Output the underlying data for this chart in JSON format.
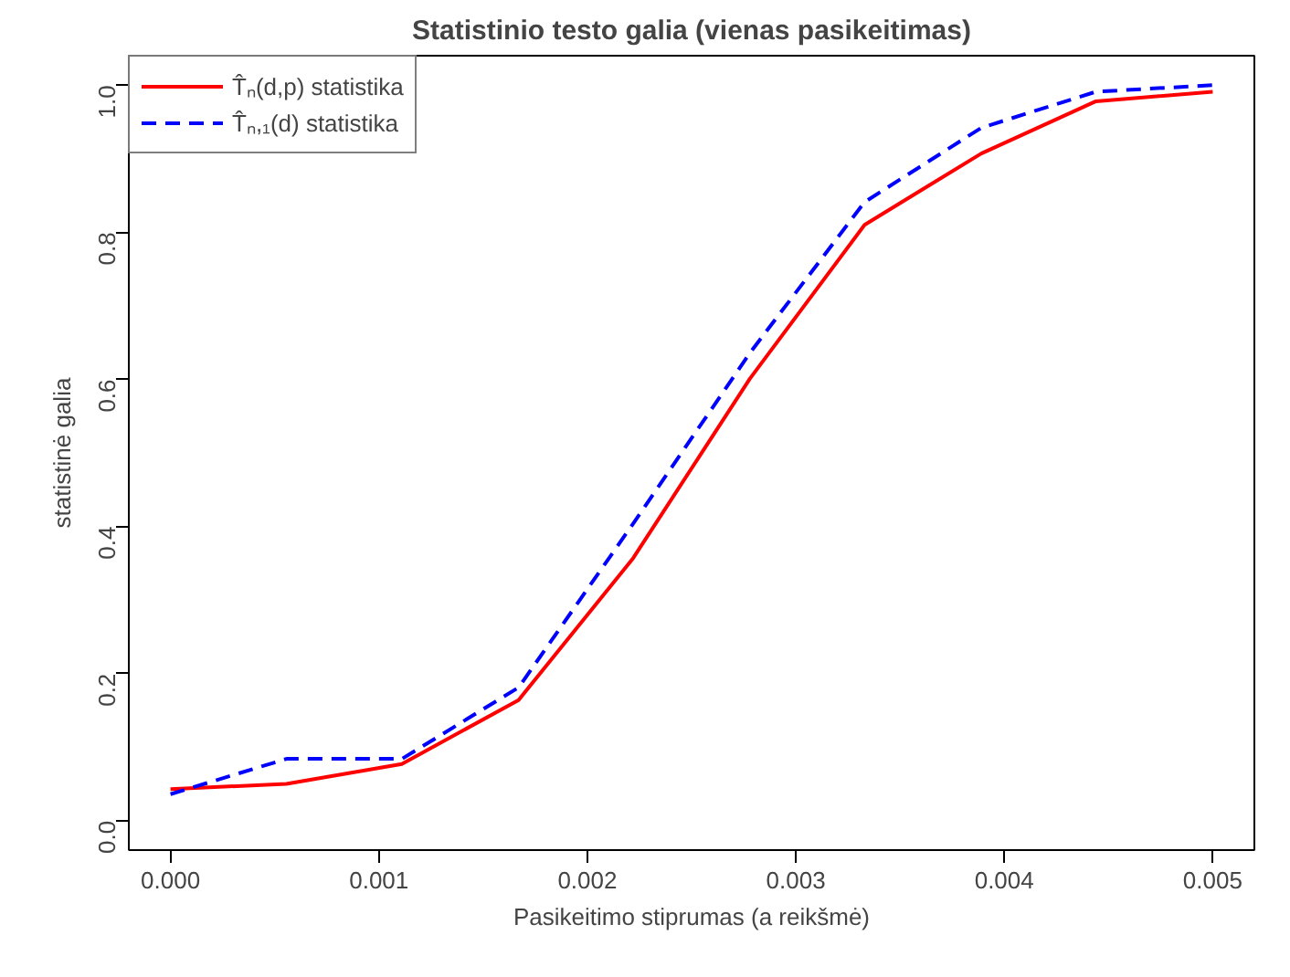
{
  "chart_data": {
    "type": "line",
    "title": "Statistinio testo galia (vienas pasikeitimas)",
    "xlabel": "Pasikeitimo stiprumas (a reikšmė)",
    "ylabel": "statistinė galia",
    "x": [
      0,
      0.000556,
      0.00111,
      0.00167,
      0.00222,
      0.00278,
      0.00333,
      0.00389,
      0.00444,
      0.005
    ],
    "series": [
      {
        "name": "T̂ₙ(d,p) statistika",
        "color": "#ff0000",
        "line_style": "solid",
        "values": [
          0.043,
          0.05,
          0.077,
          0.164,
          0.357,
          0.601,
          0.81,
          0.907,
          0.978,
          0.991
        ]
      },
      {
        "name": "T̂ₙ,₁(d) statistika",
        "color": "#0000ff",
        "line_style": "dashed",
        "values": [
          0.036,
          0.084,
          0.084,
          0.181,
          0.404,
          0.636,
          0.841,
          0.942,
          0.991,
          1.0
        ]
      }
    ],
    "xlim": [
      -0.0002,
      0.0052
    ],
    "ylim": [
      -0.04,
      1.04
    ],
    "xticks": [
      {
        "value": 0,
        "label": "0.000"
      },
      {
        "value": 0.001,
        "label": "0.001"
      },
      {
        "value": 0.002,
        "label": "0.002"
      },
      {
        "value": 0.003,
        "label": "0.003"
      },
      {
        "value": 0.004,
        "label": "0.004"
      },
      {
        "value": 0.005,
        "label": "0.005"
      }
    ],
    "yticks": [
      {
        "value": 0,
        "label": "0.0"
      },
      {
        "value": 0.2,
        "label": "0.2"
      },
      {
        "value": 0.4,
        "label": "0.4"
      },
      {
        "value": 0.6,
        "label": "0.6"
      },
      {
        "value": 0.8,
        "label": "0.8"
      },
      {
        "value": 1.0,
        "label": "1.0"
      }
    ],
    "grid": false,
    "legend": "top left",
    "marker": "none"
  }
}
